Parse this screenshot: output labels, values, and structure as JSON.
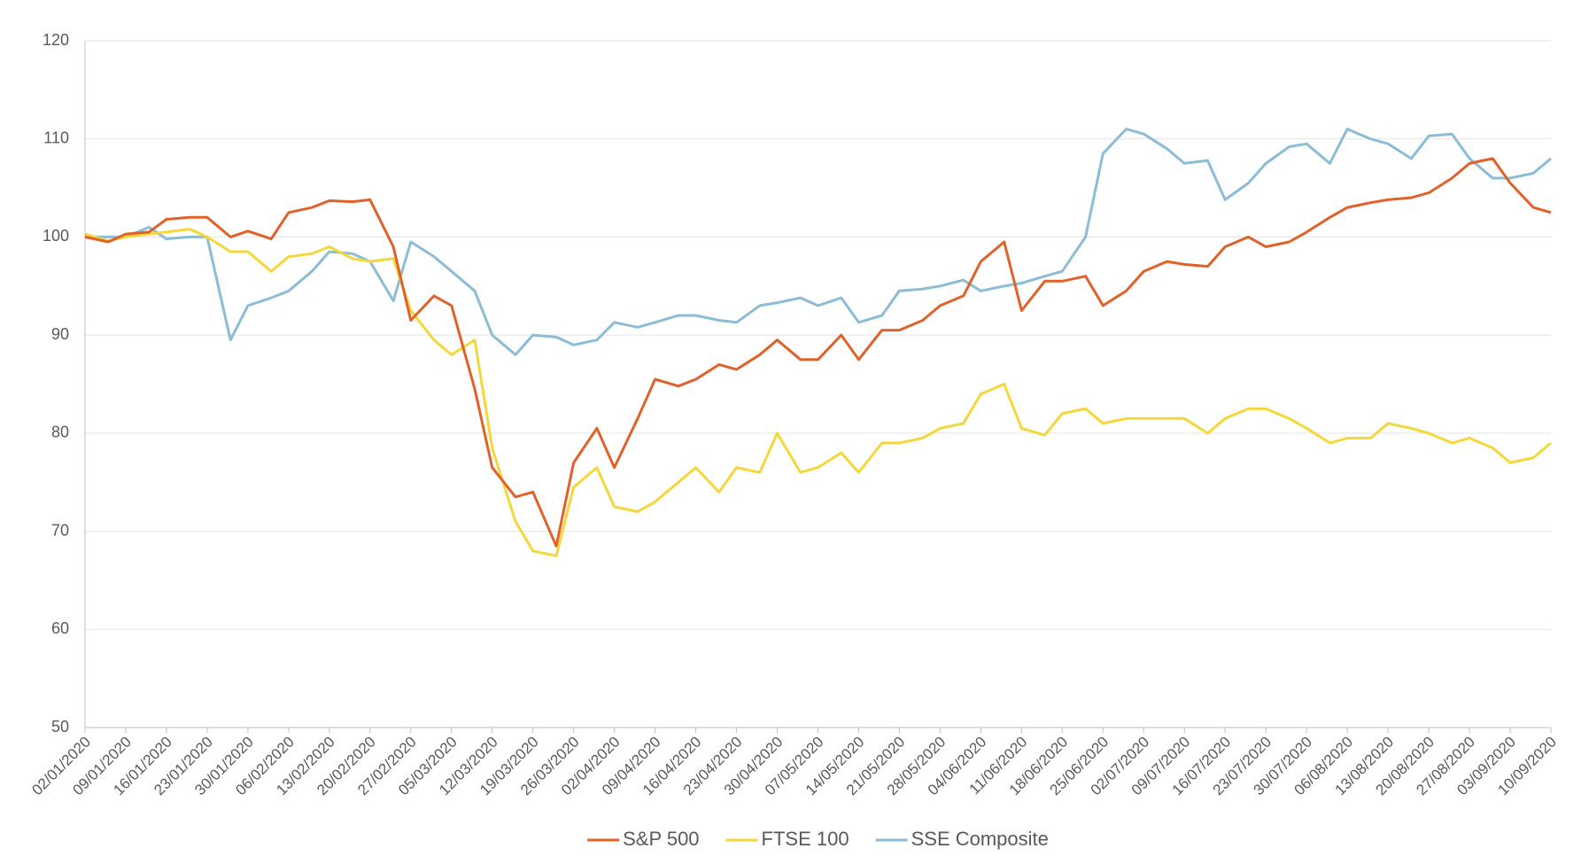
{
  "chart_data": {
    "type": "line",
    "x": [
      "02/01/2020",
      "06/01/2020",
      "09/01/2020",
      "13/01/2020",
      "16/01/2020",
      "20/01/2020",
      "23/01/2020",
      "27/01/2020",
      "30/01/2020",
      "03/02/2020",
      "06/02/2020",
      "10/02/2020",
      "13/02/2020",
      "17/02/2020",
      "20/02/2020",
      "24/02/2020",
      "27/02/2020",
      "02/03/2020",
      "05/03/2020",
      "09/03/2020",
      "12/03/2020",
      "16/03/2020",
      "19/03/2020",
      "23/03/2020",
      "26/03/2020",
      "30/03/2020",
      "02/04/2020",
      "06/04/2020",
      "09/04/2020",
      "13/04/2020",
      "16/04/2020",
      "20/04/2020",
      "23/04/2020",
      "27/04/2020",
      "30/04/2020",
      "04/05/2020",
      "07/05/2020",
      "11/05/2020",
      "14/05/2020",
      "18/05/2020",
      "21/05/2020",
      "25/05/2020",
      "28/05/2020",
      "01/06/2020",
      "04/06/2020",
      "08/06/2020",
      "11/06/2020",
      "15/06/2020",
      "18/06/2020",
      "22/06/2020",
      "25/06/2020",
      "29/06/2020",
      "02/07/2020",
      "06/07/2020",
      "09/07/2020",
      "13/07/2020",
      "16/07/2020",
      "20/07/2020",
      "23/07/2020",
      "27/07/2020",
      "30/07/2020",
      "03/08/2020",
      "06/08/2020",
      "10/08/2020",
      "13/08/2020",
      "17/08/2020",
      "20/08/2020",
      "24/08/2020",
      "27/08/2020",
      "31/08/2020",
      "03/09/2020",
      "07/09/2020",
      "10/09/2020"
    ],
    "series": [
      {
        "name": "S&P 500",
        "color": "#e0622a",
        "values": [
          100,
          99.5,
          100.3,
          100.5,
          101.8,
          102,
          102,
          100,
          100.6,
          99.8,
          102.5,
          103,
          103.7,
          103.6,
          103.8,
          99,
          91.5,
          94,
          93,
          84.5,
          76.5,
          73.5,
          74,
          68.5,
          77,
          80.5,
          76.5,
          81.5,
          85.5,
          84.8,
          85.5,
          87,
          86.5,
          88,
          89.5,
          87.5,
          87.5,
          90,
          87.5,
          90.5,
          90.5,
          91.5,
          93,
          94,
          97.5,
          99.5,
          92.5,
          95.5,
          95.5,
          96,
          93,
          94.5,
          96.5,
          97.5,
          97.2,
          97,
          99,
          100,
          99,
          99.5,
          100.5,
          102,
          103,
          103.5,
          103.8,
          104,
          104.5,
          106,
          107.5,
          108,
          105.5,
          103,
          102.5
        ]
      },
      {
        "name": "FTSE 100",
        "color": "#f5d73c",
        "values": [
          100.3,
          99.6,
          100,
          100.3,
          100.5,
          100.8,
          100,
          98.5,
          98.5,
          96.5,
          98,
          98.3,
          99,
          97.8,
          97.5,
          97.8,
          92.5,
          89.5,
          88,
          89.5,
          78.5,
          71,
          68,
          67.5,
          74.5,
          76.5,
          72.5,
          72,
          73,
          75,
          76.5,
          74,
          76.5,
          76,
          80,
          76,
          76.5,
          78,
          76,
          79,
          79,
          79.5,
          80.5,
          81,
          84,
          85,
          80.5,
          79.8,
          82,
          82.5,
          81,
          81.5,
          81.5,
          81.5,
          81.5,
          80,
          81.5,
          82.5,
          82.5,
          81.5,
          80.5,
          79,
          79.5,
          79.5,
          81,
          80.5,
          80,
          79,
          79.5,
          78.5,
          77,
          77.5,
          79
        ]
      },
      {
        "name": "SSE Composite",
        "color": "#8cbcd6",
        "values": [
          100,
          100,
          100,
          101,
          99.8,
          100,
          100,
          89.5,
          93,
          93.8,
          94.5,
          96.5,
          98.5,
          98.3,
          97.5,
          93.5,
          99.5,
          98,
          96.5,
          94.5,
          90,
          88,
          90,
          89.8,
          89,
          89.5,
          91.3,
          90.8,
          91.3,
          92,
          92,
          91.5,
          91.3,
          93,
          93.3,
          93.8,
          93,
          93.8,
          91.3,
          92,
          94.5,
          94.7,
          95,
          95.6,
          94.5,
          95,
          95.3,
          96,
          96.5,
          100,
          108.5,
          111,
          110.5,
          109,
          107.5,
          107.8,
          103.8,
          105.5,
          107.5,
          109.2,
          109.5,
          107.5,
          111,
          110,
          109.5,
          108,
          110.3,
          110.5,
          108,
          106,
          106,
          106.5,
          108
        ]
      }
    ],
    "xlim": [
      "02/01/2020",
      "10/09/2020"
    ],
    "xticks": [
      "02/01/2020",
      "09/01/2020",
      "16/01/2020",
      "23/01/2020",
      "30/01/2020",
      "06/02/2020",
      "13/02/2020",
      "20/02/2020",
      "27/02/2020",
      "05/03/2020",
      "12/03/2020",
      "19/03/2020",
      "26/03/2020",
      "02/04/2020",
      "09/04/2020",
      "16/04/2020",
      "23/04/2020",
      "30/04/2020",
      "07/05/2020",
      "14/05/2020",
      "21/05/2020",
      "28/05/2020",
      "04/06/2020",
      "11/06/2020",
      "18/06/2020",
      "25/06/2020",
      "02/07/2020",
      "09/07/2020",
      "16/07/2020",
      "23/07/2020",
      "30/07/2020",
      "06/08/2020",
      "13/08/2020",
      "20/08/2020",
      "27/08/2020",
      "03/09/2020",
      "10/09/2020"
    ],
    "ylim": [
      50,
      120
    ],
    "yticks": [
      50,
      60,
      70,
      80,
      90,
      100,
      110,
      120
    ],
    "grid": true,
    "legend": "bottom"
  }
}
